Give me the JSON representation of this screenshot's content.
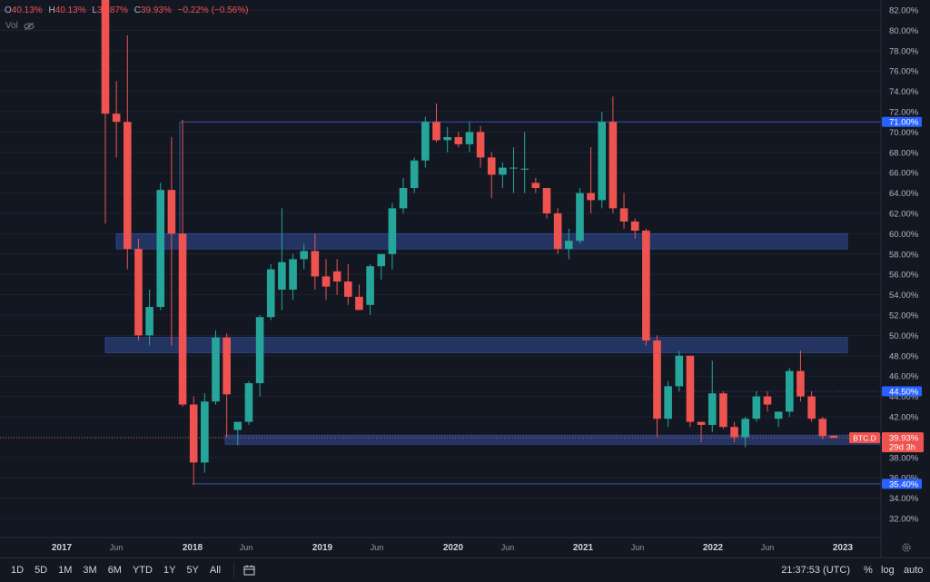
{
  "legend": {
    "open_key": "O",
    "open_val": "40.13%",
    "high_key": "H",
    "high_val": "40.13%",
    "low_key": "L",
    "low_val": "39.87%",
    "close_key": "C",
    "close_val": "39.93%",
    "change": "−0.22% (−0.56%)",
    "vol_label": "Vol",
    "vol_icon": "eye-crossed-icon"
  },
  "colors": {
    "up": "#26a69a",
    "down": "#ef5350",
    "zone": "#2a3f7a",
    "background": "#131722",
    "grid": "#1e222d",
    "label_blue": "#2962ff"
  },
  "y_axis": {
    "min": 31,
    "max": 83,
    "ticks": [
      "82.00%",
      "80.00%",
      "78.00%",
      "76.00%",
      "74.00%",
      "72.00%",
      "70.00%",
      "68.00%",
      "66.00%",
      "64.00%",
      "62.00%",
      "60.00%",
      "58.00%",
      "56.00%",
      "54.00%",
      "52.00%",
      "50.00%",
      "48.00%",
      "46.00%",
      "44.00%",
      "42.00%",
      "40.00%",
      "38.00%",
      "36.00%",
      "34.00%",
      "32.00%"
    ]
  },
  "x_axis": {
    "labels": [
      "2017",
      "Jun",
      "2018",
      "Jun",
      "2019",
      "Jun",
      "2020",
      "Jun",
      "2021",
      "Jun",
      "2022",
      "Jun",
      "2023"
    ]
  },
  "price_labels": [
    {
      "text": "71.00%",
      "value": 71.0
    },
    {
      "text": "44.50%",
      "value": 44.5
    },
    {
      "text": "35.40%",
      "value": 35.4
    }
  ],
  "current": {
    "symbol": "BTC.D",
    "price": "39.93%",
    "countdown": "29d 3h",
    "value": 39.93
  },
  "bottom_bar": {
    "ranges": [
      "1D",
      "5D",
      "1M",
      "3M",
      "6M",
      "YTD",
      "1Y",
      "5Y",
      "All"
    ],
    "clock": "21:37:53 (UTC)",
    "percent": "%",
    "log": "log",
    "auto": "auto"
  },
  "chart_data": {
    "type": "candlestick",
    "series_name": "BTC.D",
    "unit": "%",
    "period": "monthly",
    "ylim": [
      31,
      83
    ],
    "candles": [
      {
        "o": 86.0,
        "h": 87.0,
        "l": 61.0,
        "c": 71.8
      },
      {
        "o": 71.8,
        "h": 75.0,
        "l": 67.5,
        "c": 71.0
      },
      {
        "o": 71.0,
        "h": 79.5,
        "l": 56.5,
        "c": 58.5
      },
      {
        "o": 58.5,
        "h": 59.5,
        "l": 49.5,
        "c": 50.0
      },
      {
        "o": 50.0,
        "h": 54.5,
        "l": 49.0,
        "c": 52.8
      },
      {
        "o": 52.8,
        "h": 65.0,
        "l": 52.5,
        "c": 64.3
      },
      {
        "o": 64.3,
        "h": 69.5,
        "l": 49.0,
        "c": 60.0
      },
      {
        "o": 60.0,
        "h": 71.2,
        "l": 43.0,
        "c": 43.2
      },
      {
        "o": 43.2,
        "h": 44.0,
        "l": 35.3,
        "c": 37.5
      },
      {
        "o": 37.5,
        "h": 44.3,
        "l": 36.5,
        "c": 43.5
      },
      {
        "o": 43.5,
        "h": 50.5,
        "l": 43.2,
        "c": 49.8
      },
      {
        "o": 49.8,
        "h": 50.2,
        "l": 40.0,
        "c": 44.2
      },
      {
        "o": 40.7,
        "h": 41.5,
        "l": 39.2,
        "c": 41.5
      },
      {
        "o": 41.5,
        "h": 45.5,
        "l": 41.2,
        "c": 45.3
      },
      {
        "o": 45.3,
        "h": 52.0,
        "l": 44.0,
        "c": 51.8
      },
      {
        "o": 51.8,
        "h": 57.0,
        "l": 51.5,
        "c": 56.5
      },
      {
        "o": 54.5,
        "h": 62.5,
        "l": 52.5,
        "c": 57.2
      },
      {
        "o": 54.5,
        "h": 58.0,
        "l": 53.5,
        "c": 57.5
      },
      {
        "o": 57.5,
        "h": 59.0,
        "l": 56.5,
        "c": 58.3
      },
      {
        "o": 58.3,
        "h": 60.0,
        "l": 54.5,
        "c": 55.8
      },
      {
        "o": 55.8,
        "h": 57.5,
        "l": 53.5,
        "c": 54.8
      },
      {
        "o": 56.3,
        "h": 57.5,
        "l": 54.0,
        "c": 55.3
      },
      {
        "o": 55.3,
        "h": 57.0,
        "l": 53.0,
        "c": 53.8
      },
      {
        "o": 53.8,
        "h": 55.0,
        "l": 52.5,
        "c": 52.5
      },
      {
        "o": 53.0,
        "h": 57.0,
        "l": 52.0,
        "c": 56.8
      },
      {
        "o": 56.8,
        "h": 57.7,
        "l": 55.5,
        "c": 58.0
      },
      {
        "o": 58.0,
        "h": 63.0,
        "l": 56.5,
        "c": 62.5
      },
      {
        "o": 62.5,
        "h": 65.5,
        "l": 62.0,
        "c": 64.5
      },
      {
        "o": 64.5,
        "h": 67.5,
        "l": 64.0,
        "c": 67.2
      },
      {
        "o": 67.2,
        "h": 71.5,
        "l": 66.5,
        "c": 71.0
      },
      {
        "o": 71.0,
        "h": 72.8,
        "l": 69.0,
        "c": 69.2
      },
      {
        "o": 69.2,
        "h": 70.5,
        "l": 68.0,
        "c": 69.5
      },
      {
        "o": 69.5,
        "h": 70.0,
        "l": 68.5,
        "c": 68.8
      },
      {
        "o": 68.8,
        "h": 71.0,
        "l": 68.0,
        "c": 70.0
      },
      {
        "o": 70.0,
        "h": 70.6,
        "l": 66.5,
        "c": 67.5
      },
      {
        "o": 67.5,
        "h": 68.0,
        "l": 63.5,
        "c": 65.8
      },
      {
        "o": 65.8,
        "h": 67.0,
        "l": 64.5,
        "c": 66.5
      },
      {
        "o": 66.5,
        "h": 68.5,
        "l": 64.0,
        "c": 66.5
      },
      {
        "o": 66.3,
        "h": 70.0,
        "l": 64.0,
        "c": 66.4
      },
      {
        "o": 65.0,
        "h": 65.5,
        "l": 64.0,
        "c": 64.5
      },
      {
        "o": 64.5,
        "h": 64.5,
        "l": 61.5,
        "c": 62.0
      },
      {
        "o": 62.0,
        "h": 62.5,
        "l": 58.0,
        "c": 58.5
      },
      {
        "o": 58.5,
        "h": 60.5,
        "l": 57.5,
        "c": 59.3
      },
      {
        "o": 59.3,
        "h": 64.5,
        "l": 59.0,
        "c": 64.0
      },
      {
        "o": 64.0,
        "h": 68.5,
        "l": 62.0,
        "c": 63.3
      },
      {
        "o": 63.3,
        "h": 72.0,
        "l": 62.5,
        "c": 71.0
      },
      {
        "o": 71.0,
        "h": 73.5,
        "l": 62.0,
        "c": 62.5
      },
      {
        "o": 62.5,
        "h": 64.0,
        "l": 60.5,
        "c": 61.2
      },
      {
        "o": 61.2,
        "h": 61.5,
        "l": 59.5,
        "c": 60.3
      },
      {
        "o": 60.3,
        "h": 60.5,
        "l": 49.0,
        "c": 49.5
      },
      {
        "o": 49.5,
        "h": 50.0,
        "l": 40.0,
        "c": 41.8
      },
      {
        "o": 41.8,
        "h": 45.5,
        "l": 41.0,
        "c": 45.0
      },
      {
        "o": 45.0,
        "h": 48.5,
        "l": 44.5,
        "c": 48.0
      },
      {
        "o": 48.0,
        "h": 48.0,
        "l": 41.0,
        "c": 41.5
      },
      {
        "o": 41.5,
        "h": 41.5,
        "l": 39.5,
        "c": 41.2
      },
      {
        "o": 41.2,
        "h": 47.5,
        "l": 40.5,
        "c": 44.3
      },
      {
        "o": 44.3,
        "h": 44.5,
        "l": 40.8,
        "c": 41.0
      },
      {
        "o": 41.0,
        "h": 41.5,
        "l": 39.5,
        "c": 40.0
      },
      {
        "o": 40.0,
        "h": 42.0,
        "l": 39.0,
        "c": 41.8
      },
      {
        "o": 41.8,
        "h": 44.5,
        "l": 41.5,
        "c": 44.0
      },
      {
        "o": 44.0,
        "h": 44.5,
        "l": 42.5,
        "c": 43.2
      },
      {
        "o": 41.8,
        "h": 42.5,
        "l": 41.0,
        "c": 42.5
      },
      {
        "o": 42.5,
        "h": 46.8,
        "l": 42.0,
        "c": 46.5
      },
      {
        "o": 46.5,
        "h": 48.5,
        "l": 43.5,
        "c": 44.0
      },
      {
        "o": 44.0,
        "h": 44.5,
        "l": 41.5,
        "c": 41.8
      },
      {
        "o": 41.8,
        "h": 42.0,
        "l": 39.8,
        "c": 40.1
      },
      {
        "o": 40.13,
        "h": 40.13,
        "l": 39.87,
        "c": 39.93
      }
    ],
    "zones": [
      {
        "from": 58.5,
        "to": 60.0,
        "label": ""
      },
      {
        "from": 48.3,
        "to": 49.8,
        "label": ""
      },
      {
        "from": 39.3,
        "to": 40.2,
        "label": ""
      }
    ],
    "levels": [
      71.0,
      44.5,
      35.4
    ]
  }
}
